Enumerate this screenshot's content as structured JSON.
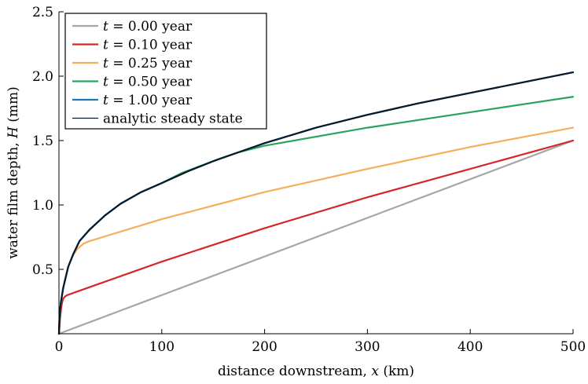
{
  "chart_data": {
    "type": "line",
    "title": "",
    "xlabel_parts": [
      "distance downstream, ",
      "x",
      " (km)"
    ],
    "ylabel_parts": [
      "water film depth, ",
      "H",
      " (mm)"
    ],
    "xlim": [
      0,
      500
    ],
    "ylim": [
      0,
      2.5
    ],
    "x_ticks": [
      0,
      100,
      200,
      300,
      400,
      500
    ],
    "x_tick_labels": [
      "0",
      "100",
      "200",
      "300",
      "400",
      "500"
    ],
    "y_ticks": [
      0.5,
      1.0,
      1.5,
      2.0,
      2.5
    ],
    "y_tick_labels": [
      "0.5",
      "1.0",
      "1.5",
      "2.0",
      "2.5"
    ],
    "grid": false,
    "legend_position": "top-left",
    "series": [
      {
        "name": "t = 0.00 year",
        "legend_prefix": "t",
        "legend_value": " = 0.00 year",
        "color": "#a6a6a6",
        "points": [
          [
            0,
            0
          ],
          [
            500,
            1.5
          ]
        ]
      },
      {
        "name": "t = 0.10 year",
        "legend_prefix": "t",
        "legend_value": " = 0.10 year",
        "color": "#d62728",
        "points": [
          [
            0,
            0
          ],
          [
            0.5,
            0.05
          ],
          [
            1,
            0.11
          ],
          [
            2,
            0.19
          ],
          [
            3,
            0.24
          ],
          [
            4,
            0.27
          ],
          [
            6,
            0.29
          ],
          [
            8,
            0.3
          ],
          [
            100,
            0.56
          ],
          [
            200,
            0.82
          ],
          [
            300,
            1.06
          ],
          [
            400,
            1.28
          ],
          [
            500,
            1.5
          ]
        ]
      },
      {
        "name": "t = 0.25 year",
        "legend_prefix": "t",
        "legend_value": " = 0.25 year",
        "color": "#f7ad5b",
        "points": [
          [
            0,
            0
          ],
          [
            0.5,
            0.12
          ],
          [
            1,
            0.18
          ],
          [
            2,
            0.25
          ],
          [
            4,
            0.35
          ],
          [
            6,
            0.42
          ],
          [
            9,
            0.52
          ],
          [
            13,
            0.6
          ],
          [
            18,
            0.66
          ],
          [
            24,
            0.7
          ],
          [
            30,
            0.72
          ],
          [
            100,
            0.89
          ],
          [
            200,
            1.1
          ],
          [
            300,
            1.28
          ],
          [
            400,
            1.45
          ],
          [
            500,
            1.6
          ]
        ]
      },
      {
        "name": "t = 0.50 year",
        "legend_prefix": "t",
        "legend_value": " = 0.50 year",
        "color": "#2ca25f",
        "points": [
          [
            0,
            0
          ],
          [
            0.5,
            0.12
          ],
          [
            1,
            0.18
          ],
          [
            2,
            0.25
          ],
          [
            4,
            0.35
          ],
          [
            6,
            0.42
          ],
          [
            9,
            0.52
          ],
          [
            14,
            0.62
          ],
          [
            20,
            0.72
          ],
          [
            30,
            0.81
          ],
          [
            45,
            0.92
          ],
          [
            60,
            1.01
          ],
          [
            80,
            1.1
          ],
          [
            100,
            1.17
          ],
          [
            120,
            1.25
          ],
          [
            140,
            1.31
          ],
          [
            160,
            1.37
          ],
          [
            175,
            1.41
          ],
          [
            200,
            1.46
          ],
          [
            300,
            1.6
          ],
          [
            400,
            1.72
          ],
          [
            500,
            1.84
          ]
        ]
      },
      {
        "name": "t = 1.00 year",
        "legend_prefix": "t",
        "legend_value": " = 1.00 year",
        "color": "#1f77b4",
        "points": [
          [
            0,
            0
          ],
          [
            0.5,
            0.12
          ],
          [
            1,
            0.18
          ],
          [
            2,
            0.25
          ],
          [
            4,
            0.35
          ],
          [
            6,
            0.42
          ],
          [
            9,
            0.52
          ],
          [
            14,
            0.62
          ],
          [
            20,
            0.72
          ],
          [
            30,
            0.81
          ],
          [
            45,
            0.92
          ],
          [
            60,
            1.01
          ],
          [
            80,
            1.1
          ],
          [
            100,
            1.17
          ],
          [
            125,
            1.26
          ],
          [
            150,
            1.34
          ],
          [
            175,
            1.41
          ],
          [
            200,
            1.48
          ],
          [
            250,
            1.6
          ],
          [
            300,
            1.7
          ],
          [
            350,
            1.79
          ],
          [
            400,
            1.87
          ],
          [
            450,
            1.95
          ],
          [
            500,
            2.03
          ]
        ]
      },
      {
        "name": "analytic steady state",
        "legend_prefix": "",
        "legend_value": "analytic steady state",
        "color": "#0b1a2a",
        "thin_legend": true,
        "points": [
          [
            0,
            0
          ],
          [
            0.5,
            0.12
          ],
          [
            1,
            0.18
          ],
          [
            2,
            0.25
          ],
          [
            4,
            0.35
          ],
          [
            6,
            0.42
          ],
          [
            9,
            0.52
          ],
          [
            14,
            0.62
          ],
          [
            20,
            0.72
          ],
          [
            30,
            0.81
          ],
          [
            45,
            0.92
          ],
          [
            60,
            1.01
          ],
          [
            80,
            1.1
          ],
          [
            100,
            1.17
          ],
          [
            125,
            1.26
          ],
          [
            150,
            1.34
          ],
          [
            175,
            1.41
          ],
          [
            200,
            1.48
          ],
          [
            250,
            1.6
          ],
          [
            300,
            1.7
          ],
          [
            350,
            1.79
          ],
          [
            400,
            1.87
          ],
          [
            450,
            1.95
          ],
          [
            500,
            2.03
          ]
        ]
      }
    ]
  }
}
